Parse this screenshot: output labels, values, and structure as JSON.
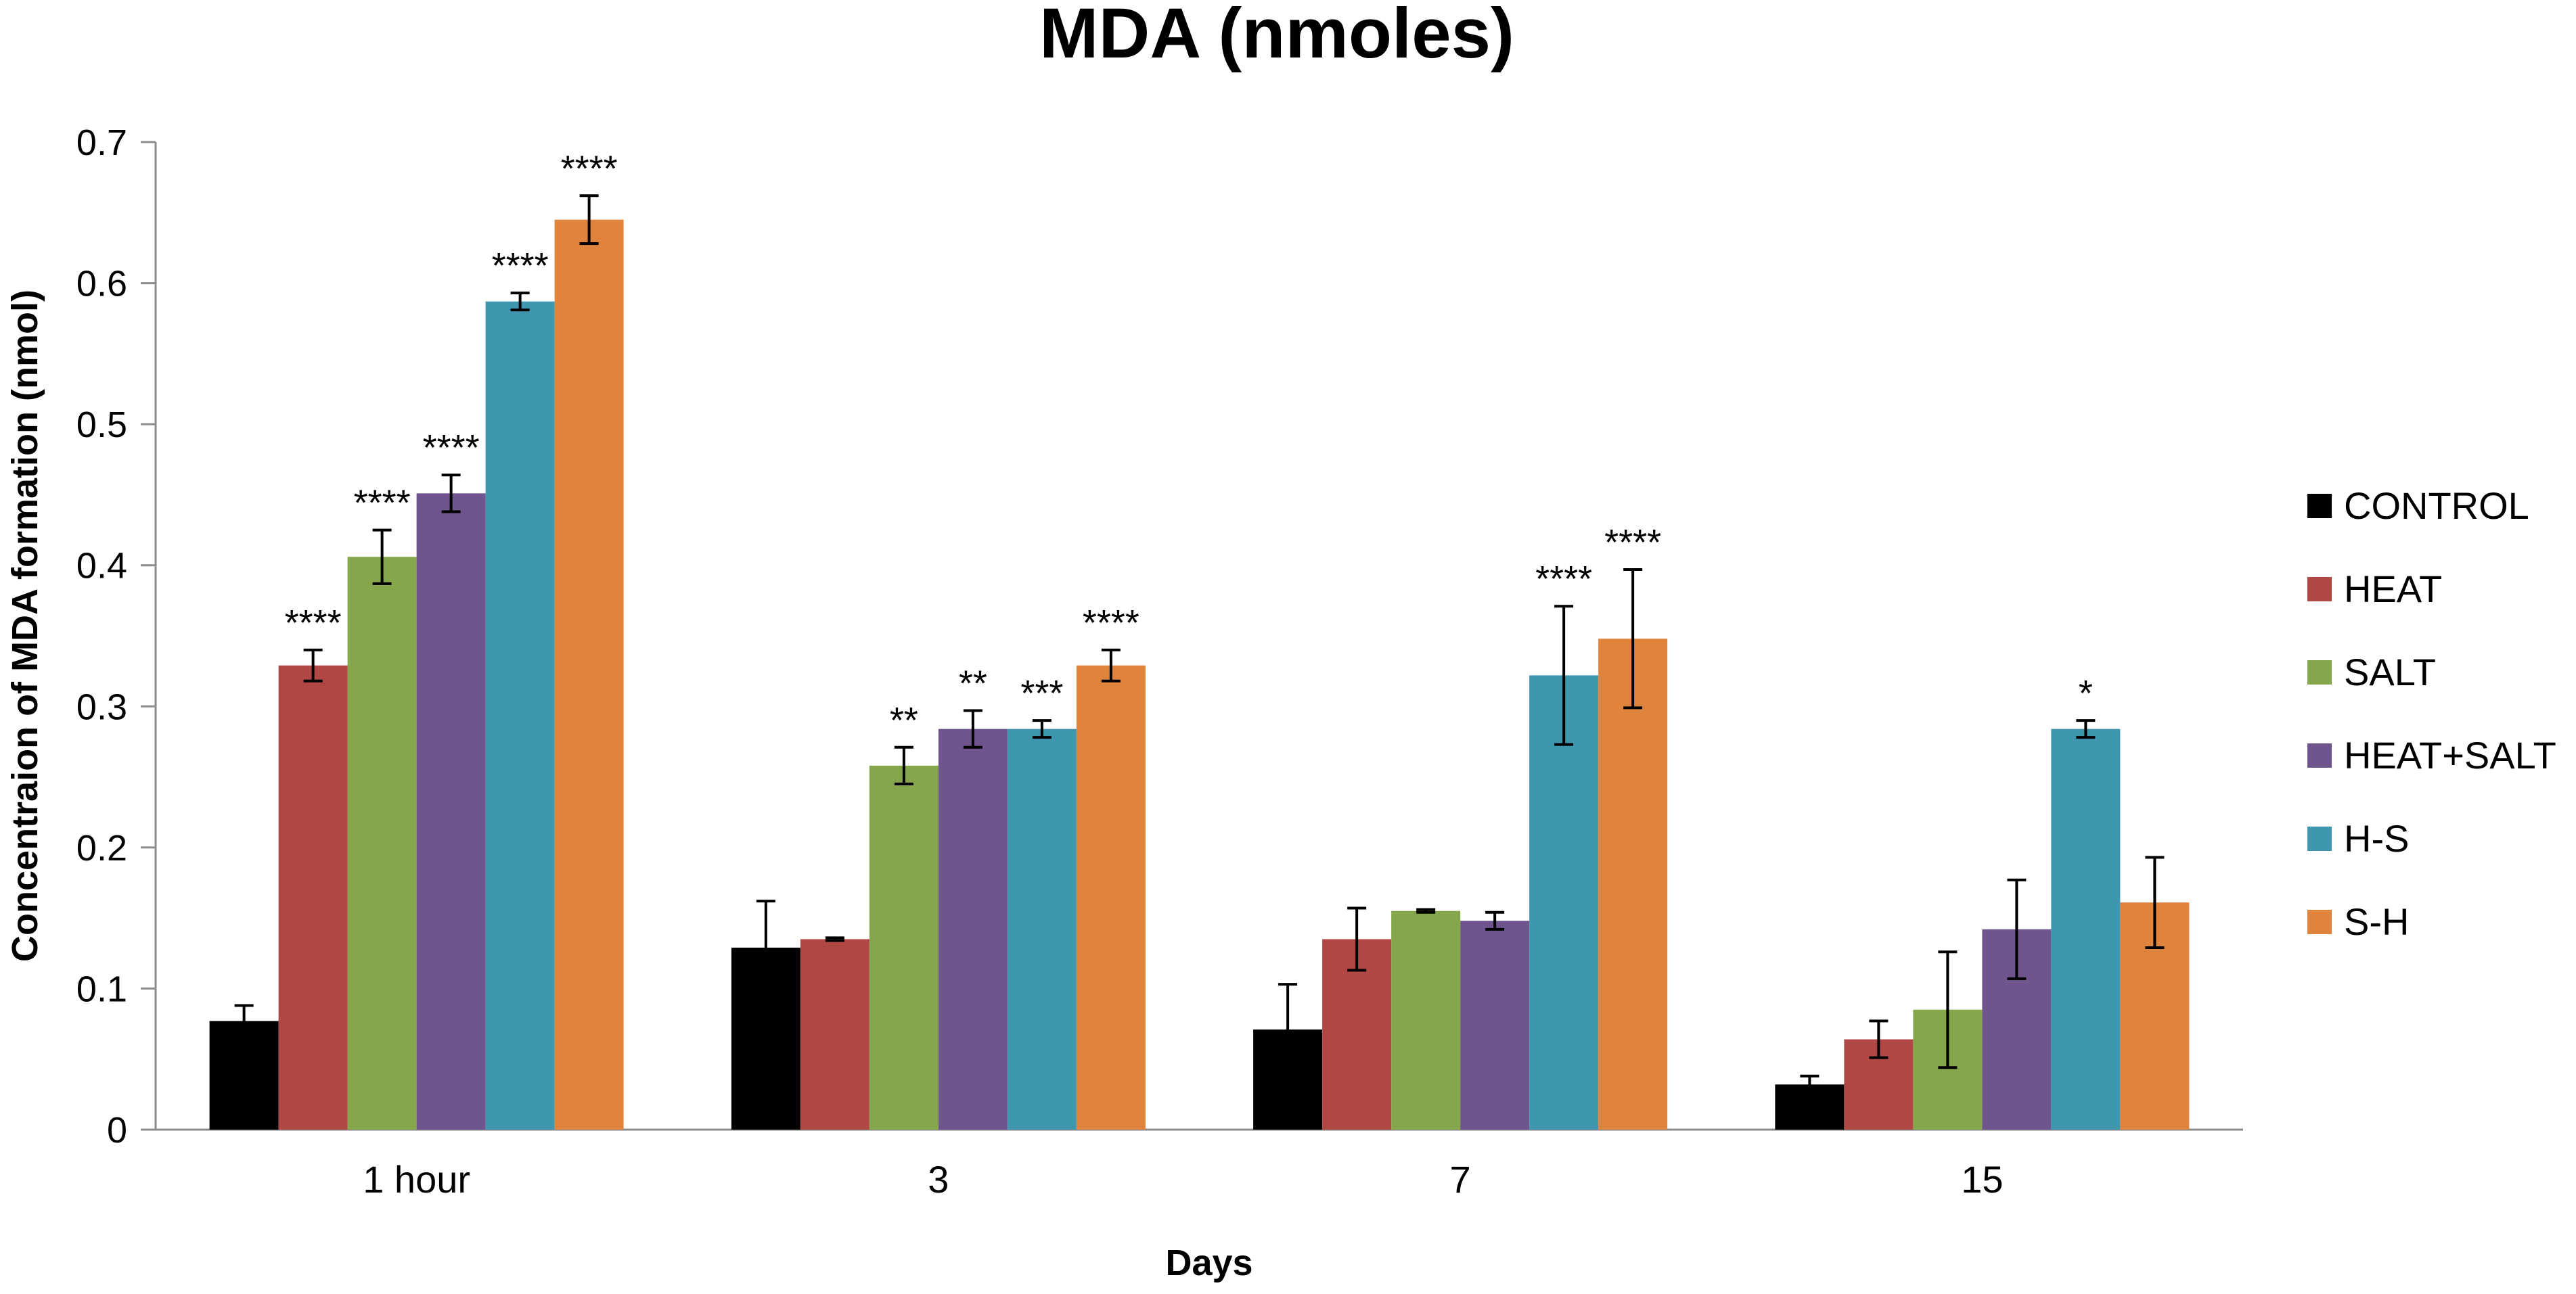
{
  "chart_data": {
    "type": "bar",
    "title": "MDA (nmoles)",
    "xlabel": "Days",
    "ylabel": "Concentraion of MDA formation (nmol)",
    "ylim": [
      0,
      0.7
    ],
    "yticks": [
      "0",
      "0.1",
      "0.2",
      "0.3",
      "0.4",
      "0.5",
      "0.6",
      "0.7"
    ],
    "ytick_values": [
      0,
      0.1,
      0.2,
      0.3,
      0.4,
      0.5,
      0.6,
      0.7
    ],
    "grid": false,
    "legend_position": "right",
    "categories": [
      "1 hour",
      "3",
      "7",
      "15"
    ],
    "series": [
      {
        "name": "CONTROL",
        "color": "#000000",
        "values": [
          0.077,
          0.129,
          0.071,
          0.032
        ],
        "errors": [
          0.011,
          0.033,
          0.032,
          0.006
        ],
        "significance": [
          "",
          "",
          "",
          ""
        ]
      },
      {
        "name": "HEAT",
        "color": "#b04745",
        "values": [
          0.329,
          0.135,
          0.135,
          0.064
        ],
        "errors": [
          0.011,
          0.001,
          0.022,
          0.013
        ],
        "significance": [
          "****",
          "",
          "",
          ""
        ]
      },
      {
        "name": "SALT",
        "color": "#86a64c",
        "values": [
          0.406,
          0.258,
          0.155,
          0.085
        ],
        "errors": [
          0.019,
          0.013,
          0.001,
          0.041
        ],
        "significance": [
          "****",
          "**",
          "",
          ""
        ]
      },
      {
        "name": "HEAT+SALT",
        "color": "#6f558e",
        "values": [
          0.451,
          0.284,
          0.148,
          0.142
        ],
        "errors": [
          0.013,
          0.013,
          0.006,
          0.035
        ],
        "significance": [
          "****",
          "**",
          "",
          ""
        ]
      },
      {
        "name": "H-S",
        "color": "#3e97ae",
        "values": [
          0.587,
          0.284,
          0.322,
          0.284
        ],
        "errors": [
          0.006,
          0.006,
          0.049,
          0.006
        ],
        "significance": [
          "****",
          "***",
          "****",
          "*"
        ]
      },
      {
        "name": "S-H",
        "color": "#e0843d",
        "values": [
          0.645,
          0.329,
          0.348,
          0.161
        ],
        "errors": [
          0.017,
          0.011,
          0.049,
          0.032
        ],
        "significance": [
          "****",
          "****",
          "****",
          ""
        ]
      }
    ]
  }
}
